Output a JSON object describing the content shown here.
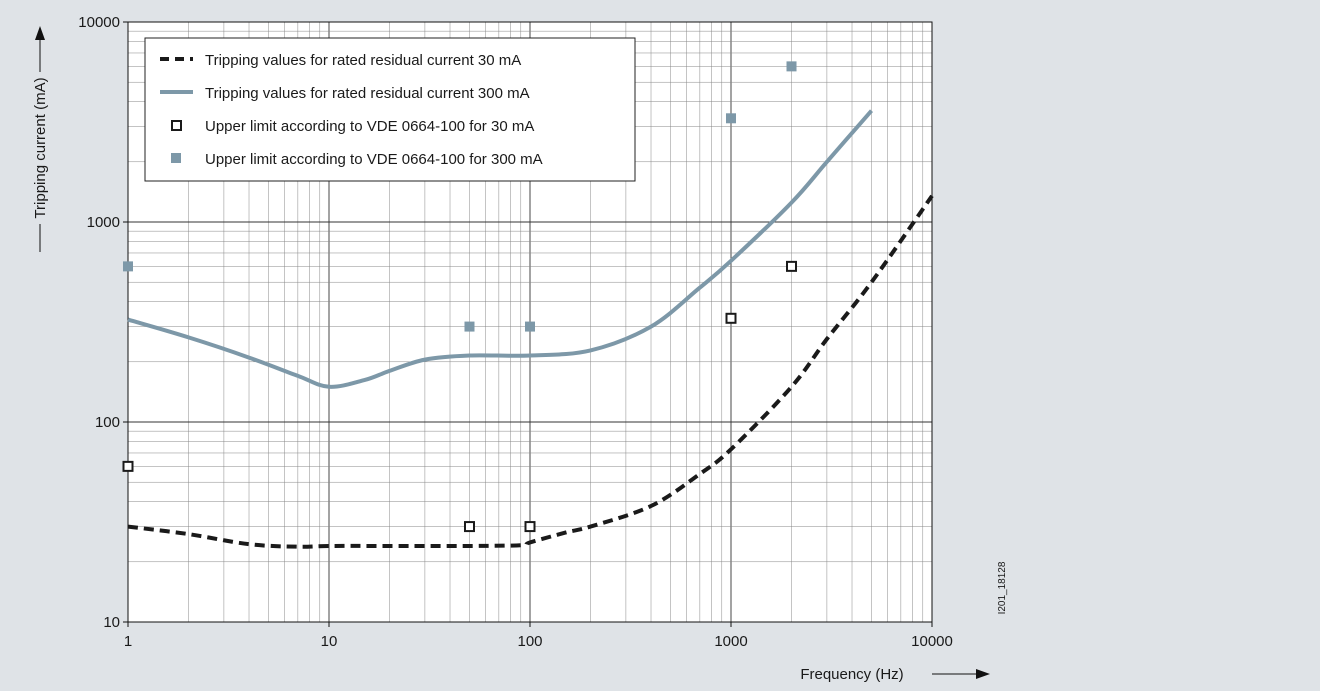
{
  "chart_data": {
    "type": "line",
    "title": "",
    "xlabel": "Frequency (Hz)",
    "ylabel": "Tripping current (mA)",
    "x_scale": "log",
    "y_scale": "log",
    "xlim": [
      1,
      10000
    ],
    "ylim": [
      10,
      10000
    ],
    "x_ticks": [
      "1",
      "10",
      "100",
      "1000",
      "10000"
    ],
    "y_ticks": [
      "10",
      "100",
      "1000",
      "10000"
    ],
    "grid": true,
    "legend_position": "top-left",
    "image_id": "I201_18128",
    "series": [
      {
        "name": "Tripping values for rated residual current 30 mA",
        "style": "dashed-line",
        "color": "#1a1a1a",
        "x": [
          1,
          2,
          4,
          7,
          10,
          20,
          50,
          90,
          100,
          150,
          200,
          400,
          700,
          1000,
          2000,
          3000,
          5000,
          10000
        ],
        "y": [
          30,
          27.5,
          24.5,
          23.8,
          24,
          24,
          24,
          24.2,
          25,
          28,
          30,
          38,
          55,
          73,
          150,
          260,
          500,
          1350
        ]
      },
      {
        "name": "Tripping values for rated residual current 300 mA",
        "style": "solid-line",
        "color": "#7d98a8",
        "x": [
          1,
          2,
          4,
          7,
          10,
          15,
          20,
          30,
          50,
          100,
          200,
          400,
          700,
          1000,
          2000,
          3000,
          5000
        ],
        "y": [
          325,
          265,
          210,
          170,
          150,
          162,
          180,
          205,
          215,
          215,
          228,
          300,
          470,
          640,
          1250,
          2000,
          3600
        ]
      },
      {
        "name": "Upper limit according to VDE 0664-100 for 30 mA",
        "style": "open-square",
        "color": "#1a1a1a",
        "x": [
          1,
          50,
          100,
          1000,
          2000
        ],
        "y": [
          60,
          30,
          30,
          330,
          600
        ]
      },
      {
        "name": "Upper limit according to VDE 0664-100 for 300 mA",
        "style": "filled-square",
        "color": "#7d98a8",
        "x": [
          1,
          50,
          100,
          1000,
          2000
        ],
        "y": [
          600,
          300,
          300,
          3300,
          6000
        ]
      }
    ]
  }
}
